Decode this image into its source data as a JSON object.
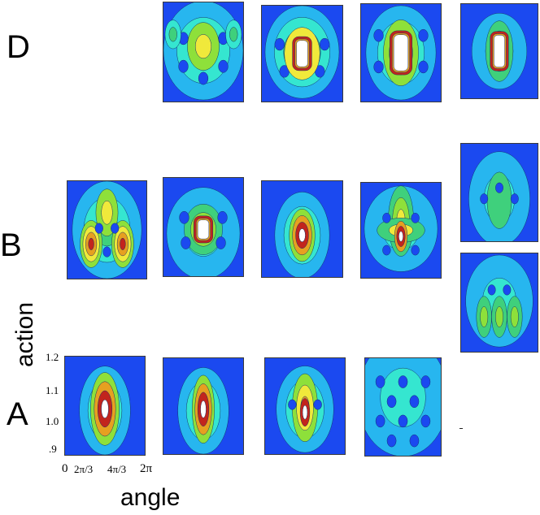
{
  "row_labels": {
    "d": "D",
    "b": "B",
    "a": "A"
  },
  "axes": {
    "ylabel": "action",
    "xlabel": "angle",
    "y_ticks": [
      ".9",
      "1.0",
      "1.1",
      "1.2"
    ],
    "x_ticks": [
      "0",
      "2π/3",
      "4π/3",
      "2π"
    ]
  },
  "colormap": [
    "#1b49f0",
    "#27b6ef",
    "#35e6d0",
    "#3fd07c",
    "#8ee03a",
    "#f0e93b",
    "#e6a020",
    "#c2241d",
    "#ffffff"
  ],
  "panels": [
    {
      "row": "d",
      "col": 1,
      "pattern": "multi"
    },
    {
      "row": "d",
      "col": 2,
      "pattern": "core-wide"
    },
    {
      "row": "d",
      "col": 3,
      "pattern": "core-box"
    },
    {
      "row": "d",
      "col": 4,
      "pattern": "core-box-narrow"
    },
    {
      "row": "b",
      "col": 0,
      "pattern": "lobes"
    },
    {
      "row": "b",
      "col": 1,
      "pattern": "core-small"
    },
    {
      "row": "b",
      "col": 2,
      "pattern": "drop"
    },
    {
      "row": "b",
      "col": 3,
      "pattern": "cross"
    },
    {
      "row": "b",
      "col": 4,
      "pattern": "faint"
    },
    {
      "row": "b2",
      "col": 4,
      "pattern": "faint-lobes"
    },
    {
      "row": "a",
      "col": 0,
      "pattern": "spindle-big"
    },
    {
      "row": "a",
      "col": 1,
      "pattern": "spindle"
    },
    {
      "row": "a",
      "col": 2,
      "pattern": "spindle-thin"
    },
    {
      "row": "a",
      "col": 3,
      "pattern": "spread"
    }
  ]
}
